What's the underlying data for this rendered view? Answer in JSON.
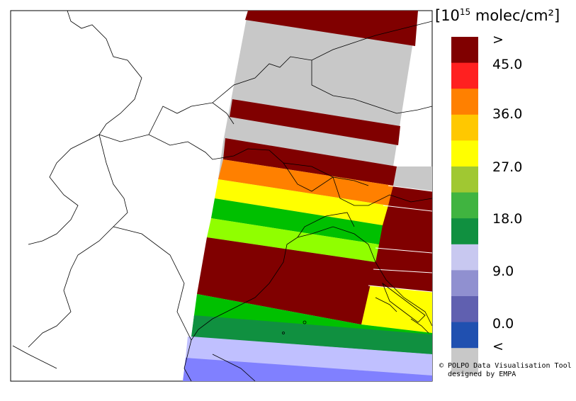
{
  "legend": {
    "unit_prefix": "[10",
    "unit_exp": "15",
    "unit_suffix": " molec/cm²]",
    "ticks": [
      ">",
      "45.0",
      "36.0",
      "27.0",
      "18.0",
      "9.0",
      "0.0",
      "<"
    ],
    "colors": [
      "#800000",
      "#ff2020",
      "#ff8000",
      "#ffc800",
      "#ffff00",
      "#a0c832",
      "#40b440",
      "#109040",
      "#c8c8f0",
      "#9090d0",
      "#6060b0",
      "#2050b0",
      "#c8c8c8"
    ]
  },
  "credit": {
    "line1": "© POLPO Data Visualisation Tool",
    "line2": "designed by EMPA"
  },
  "swath_colors": {
    "maroon": "#800000",
    "gray": "#c8c8c8",
    "orange": "#ff8000",
    "yellow": "#ffff00",
    "green": "#00c000",
    "lime": "#90ff00",
    "dkgreen": "#109040",
    "lavender": "#c0c0ff",
    "blue": "#8080ff"
  }
}
